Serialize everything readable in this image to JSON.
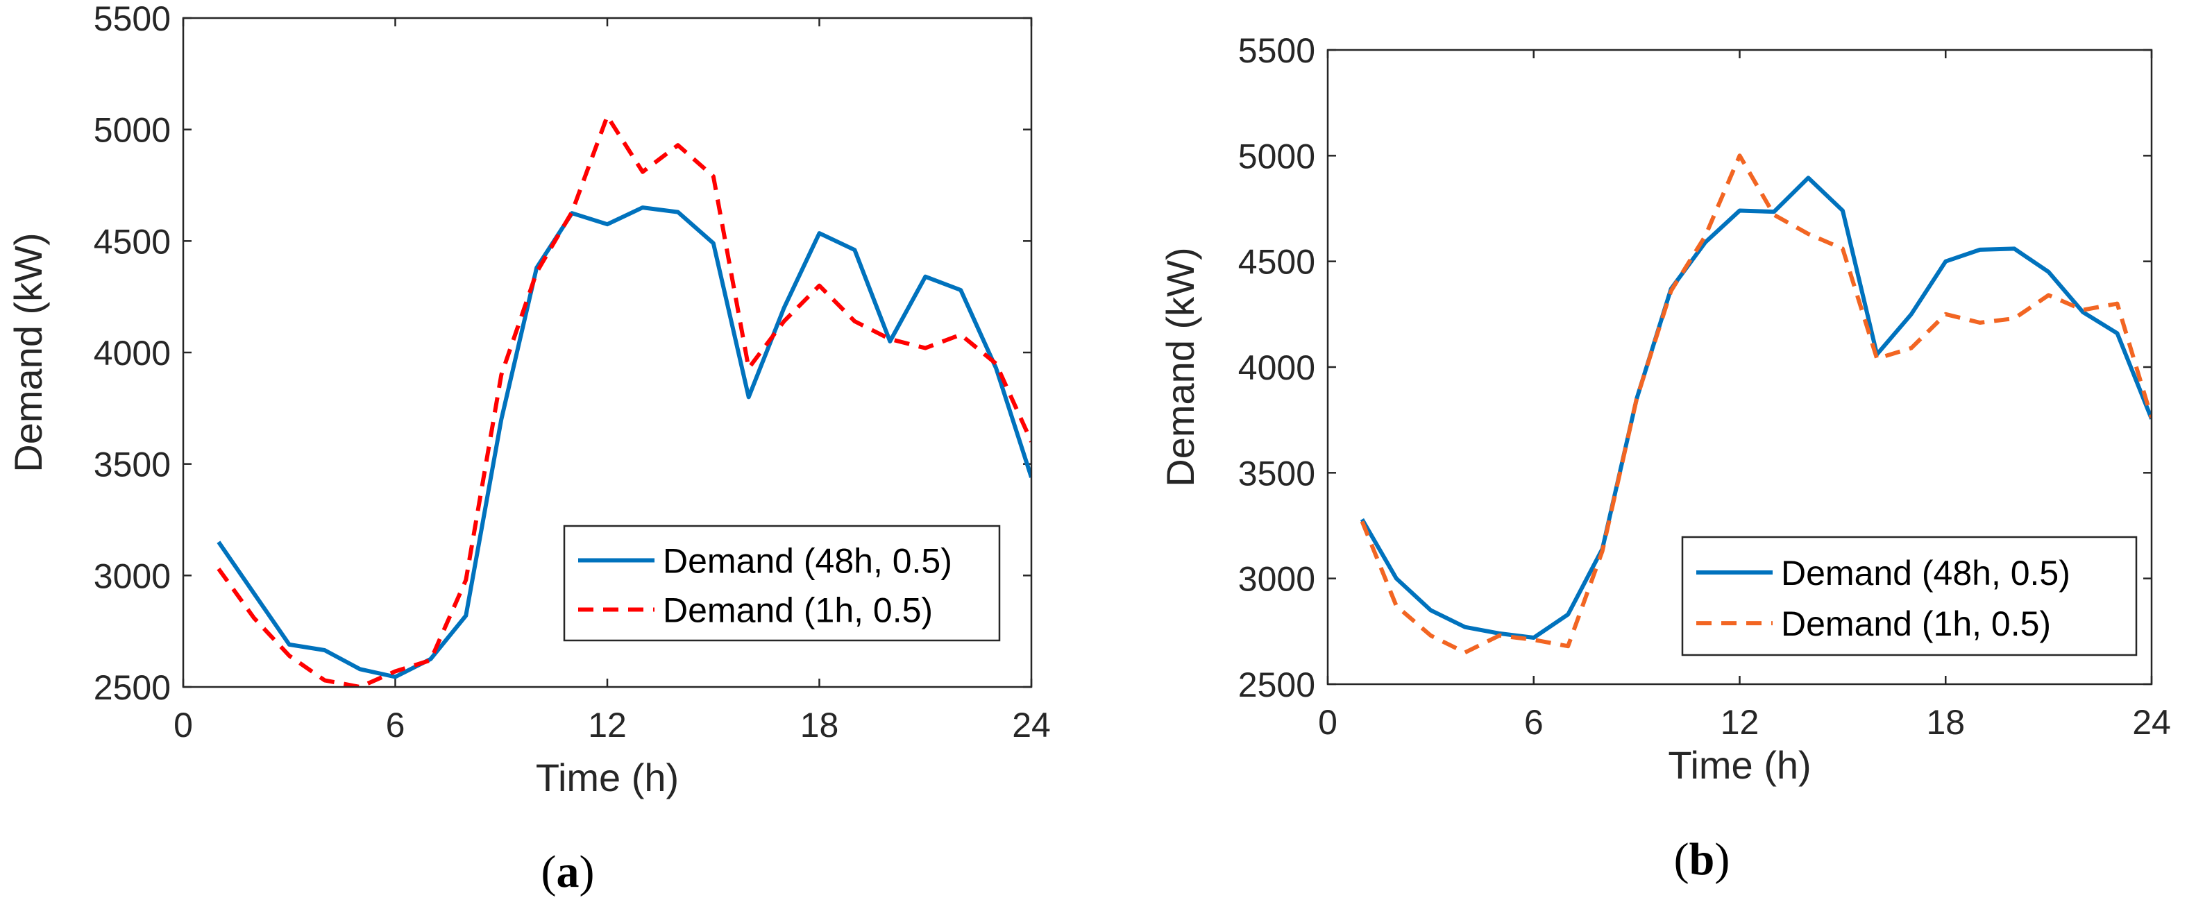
{
  "chart_data": [
    {
      "panel_label_open": "(",
      "panel_label_letter": "a",
      "panel_label_close": ")",
      "type": "line",
      "xlabel": "Time (h)",
      "ylabel": "Demand (kW)",
      "xlim": [
        0,
        24
      ],
      "ylim": [
        2500,
        5500
      ],
      "xticks": [
        0,
        6,
        12,
        18,
        24
      ],
      "yticks": [
        2500,
        3000,
        3500,
        4000,
        4500,
        5000,
        5500
      ],
      "grid": false,
      "legend_position": "bottom-right",
      "x": [
        1,
        2,
        3,
        4,
        5,
        6,
        7,
        8,
        9,
        10,
        11,
        12,
        13,
        14,
        15,
        16,
        17,
        18,
        19,
        20,
        21,
        22,
        23,
        24
      ],
      "series": [
        {
          "name": "Demand (48h, 0.5)",
          "color": "#0072BD",
          "dash": "solid",
          "values": [
            3150,
            2920,
            2690,
            2665,
            2580,
            2545,
            2625,
            2820,
            3700,
            4380,
            4625,
            4575,
            4650,
            4630,
            4490,
            3800,
            4200,
            4535,
            4460,
            4050,
            4340,
            4280,
            3930,
            3440
          ]
        },
        {
          "name": "Demand (1h, 0.5)",
          "color": "#FF0000",
          "dash": "dashed",
          "values": [
            3030,
            2810,
            2640,
            2530,
            2500,
            2570,
            2620,
            2980,
            3900,
            4360,
            4630,
            5060,
            4810,
            4930,
            4790,
            3930,
            4140,
            4300,
            4140,
            4060,
            4020,
            4080,
            3950,
            3600
          ]
        }
      ]
    },
    {
      "panel_label_open": "(",
      "panel_label_letter": "b",
      "panel_label_close": ")",
      "type": "line",
      "xlabel": "Time (h)",
      "ylabel": "Demand (kW)",
      "xlim": [
        0,
        24
      ],
      "ylim": [
        2500,
        5500
      ],
      "xticks": [
        0,
        6,
        12,
        18,
        24
      ],
      "yticks": [
        2500,
        3000,
        3500,
        4000,
        4500,
        5000,
        5500
      ],
      "grid": false,
      "legend_position": "bottom-right",
      "x": [
        1,
        2,
        3,
        4,
        5,
        6,
        7,
        8,
        9,
        10,
        11,
        12,
        13,
        14,
        15,
        16,
        17,
        18,
        19,
        20,
        21,
        22,
        23,
        24
      ],
      "series": [
        {
          "name": "Demand (48h, 0.5)",
          "color": "#0072BD",
          "dash": "solid",
          "values": [
            3280,
            3000,
            2850,
            2770,
            2740,
            2720,
            2830,
            3140,
            3850,
            4370,
            4590,
            4740,
            4735,
            4895,
            4740,
            4060,
            4250,
            4500,
            4555,
            4560,
            4450,
            4260,
            4160,
            3755
          ]
        },
        {
          "name": "Demand (1h, 0.5)",
          "color": "#F26522",
          "dash": "dashed",
          "values": [
            3270,
            2870,
            2730,
            2650,
            2730,
            2710,
            2680,
            3130,
            3850,
            4360,
            4620,
            5000,
            4720,
            4630,
            4560,
            4040,
            4090,
            4250,
            4210,
            4230,
            4340,
            4270,
            4300,
            3760
          ]
        }
      ]
    }
  ]
}
